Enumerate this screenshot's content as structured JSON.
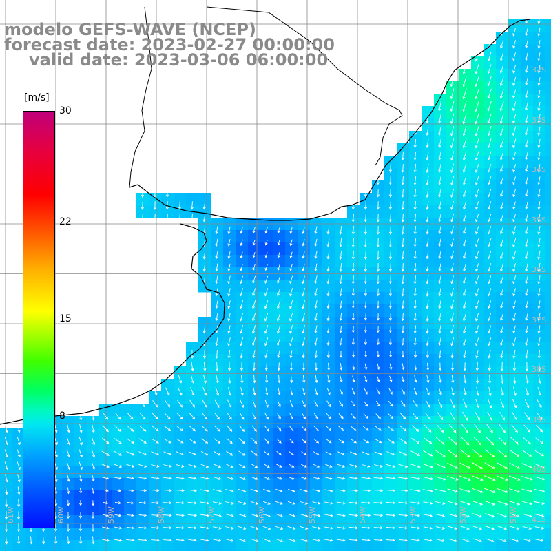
{
  "title": {
    "line1": "modelo GEFS-WAVE (NCEP)",
    "line2": "forecast date: 2023-02-27 00:00:00",
    "line3": "valid date: 2023-03-06 06:00:00"
  },
  "colorbar": {
    "unit": "[m/s]",
    "ticks": [
      {
        "label": "30",
        "value": 30
      },
      {
        "label": "22",
        "value": 22
      },
      {
        "label": "15",
        "value": 15
      },
      {
        "label": "8",
        "value": 8
      }
    ],
    "colors": [
      "#0010ff",
      "#00a8ff",
      "#00f8c0",
      "#40ff00",
      "#ffff00",
      "#ff6000",
      "#ff0000",
      "#c0007a"
    ]
  },
  "map": {
    "longitude_labels": [
      "61W",
      "60W",
      "59W",
      "58W",
      "57W",
      "56W",
      "55W",
      "54W",
      "53W",
      "52W",
      "51W"
    ],
    "latitude_labels": [
      "32S",
      "33S",
      "34S",
      "35S",
      "36S",
      "37S",
      "38S",
      "39S",
      "40S",
      "41S"
    ],
    "colors": {
      "land": "#ffffff",
      "coast": "#000000",
      "grid": "#888888",
      "arrow": "#ffffff"
    }
  }
}
